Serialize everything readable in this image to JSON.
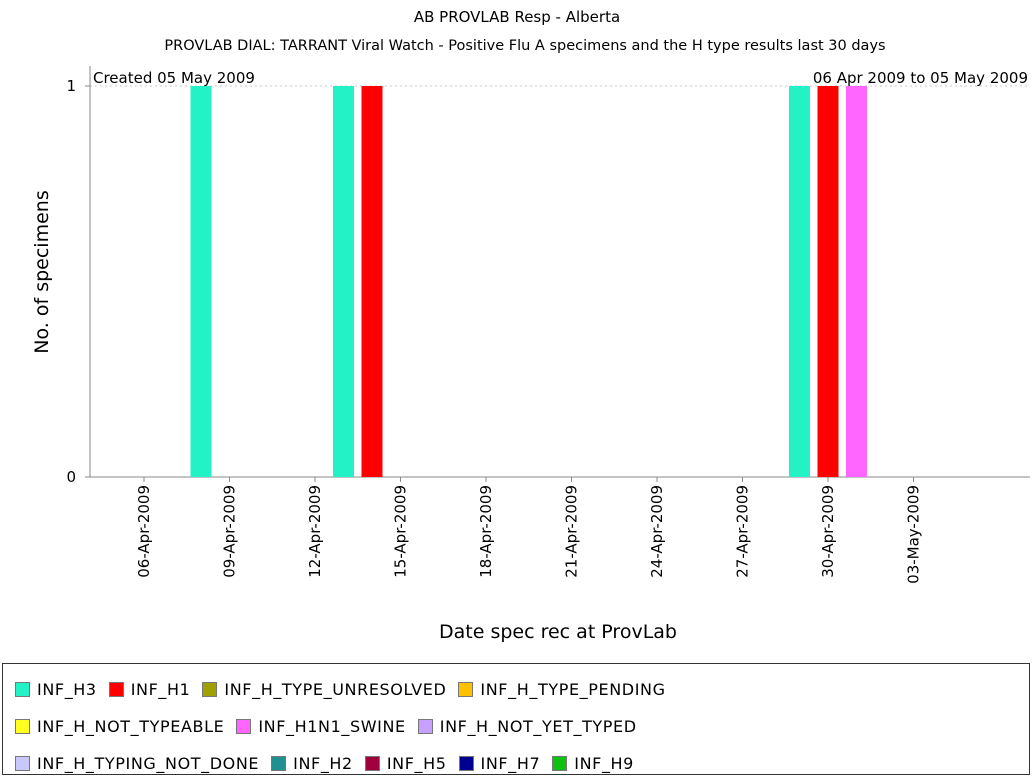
{
  "chart_data": {
    "type": "bar",
    "title": "AB PROVLAB Resp - Alberta",
    "subtitle": "PROVLAB DIAL: TARRANT Viral Watch - Positive Flu A specimens and the H type results last 30 days",
    "annotation_left": "Created 05 May 2009",
    "annotation_right": "06 Apr 2009 to 05 May 2009",
    "xlabel": "Date spec rec at ProvLab",
    "ylabel": "No. of specimens",
    "ylim": [
      0,
      1
    ],
    "yticks": [
      "0",
      "1"
    ],
    "xticks": [
      "06-Apr-2009",
      "09-Apr-2009",
      "12-Apr-2009",
      "15-Apr-2009",
      "18-Apr-2009",
      "21-Apr-2009",
      "24-Apr-2009",
      "27-Apr-2009",
      "30-Apr-2009",
      "03-May-2009"
    ],
    "x_start_date": "06-Apr-2009",
    "legend_position": "bottom",
    "series": [
      {
        "name": "INF_H3",
        "color": "#22f2c6",
        "points": [
          {
            "date": "08-Apr-2009",
            "value": 1
          },
          {
            "date": "13-Apr-2009",
            "value": 1
          },
          {
            "date": "29-Apr-2009",
            "value": 1
          }
        ]
      },
      {
        "name": "INF_H1",
        "color": "#ff0000",
        "points": [
          {
            "date": "14-Apr-2009",
            "value": 1
          },
          {
            "date": "30-Apr-2009",
            "value": 1
          }
        ]
      },
      {
        "name": "INF_H_TYPE_UNRESOLVED",
        "color": "#a0a000",
        "points": []
      },
      {
        "name": "INF_H_TYPE_PENDING",
        "color": "#ffc000",
        "points": []
      },
      {
        "name": "INF_H_NOT_TYPEABLE",
        "color": "#ffff20",
        "points": []
      },
      {
        "name": "INF_H1N1_SWINE",
        "color": "#ff66ff",
        "points": [
          {
            "date": "01-May-2009",
            "value": 1
          }
        ]
      },
      {
        "name": "INF_H_NOT_YET_TYPED",
        "color": "#c8a0ff",
        "points": []
      },
      {
        "name": "INF_H_TYPING_NOT_DONE",
        "color": "#c8c8ff",
        "points": []
      },
      {
        "name": "INF_H2",
        "color": "#209090",
        "points": []
      },
      {
        "name": "INF_H5",
        "color": "#a0003c",
        "points": []
      },
      {
        "name": "INF_H7",
        "color": "#000090",
        "points": []
      },
      {
        "name": "INF_H9",
        "color": "#10c010",
        "points": []
      }
    ]
  }
}
